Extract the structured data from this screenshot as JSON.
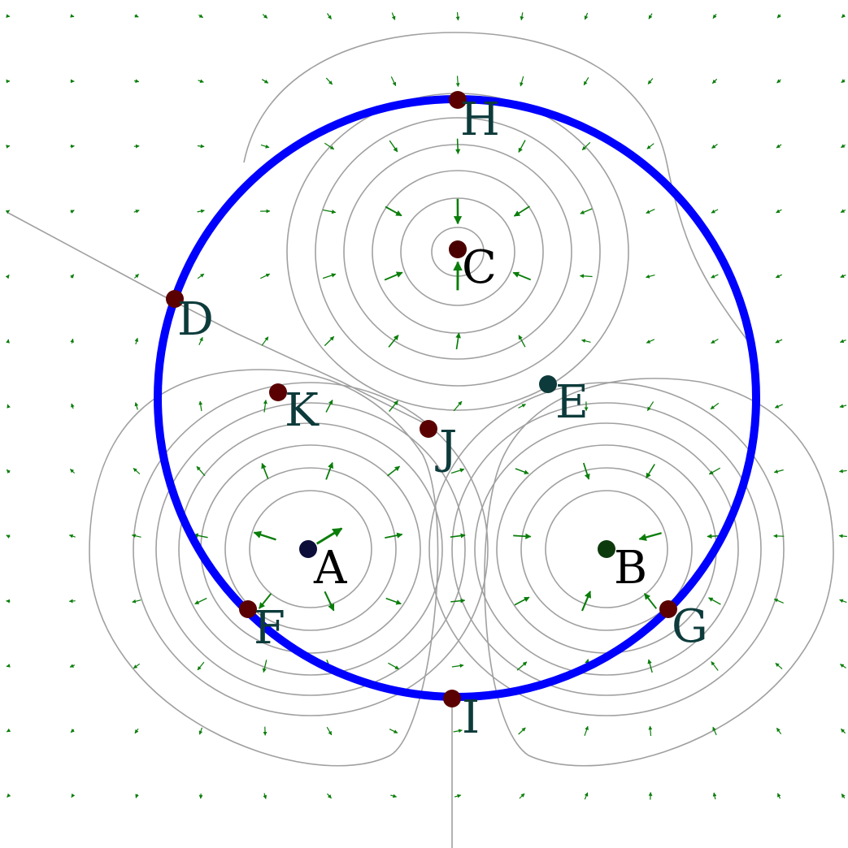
{
  "colors": {
    "background": "#ffffff",
    "circle": "#0000ff",
    "contour": "#a0a0a0",
    "arrow": "#0a7d0a",
    "label": "#0d3b3b"
  },
  "points": [
    {
      "id": "A",
      "label": "A",
      "color": "#0d0d3a"
    },
    {
      "id": "B",
      "label": "B",
      "color": "#0d3a0d"
    },
    {
      "id": "C",
      "label": "C",
      "color": "#4a0000"
    },
    {
      "id": "D",
      "label": "D",
      "color": "#5a0000"
    },
    {
      "id": "E",
      "label": "E",
      "color": "#0d3a3a"
    },
    {
      "id": "F",
      "label": "F",
      "color": "#5a0000"
    },
    {
      "id": "G",
      "label": "G",
      "color": "#5a0000"
    },
    {
      "id": "H",
      "label": "H",
      "color": "#5a0000"
    },
    {
      "id": "I",
      "label": "I",
      "color": "#5a0000"
    },
    {
      "id": "J",
      "label": "J",
      "color": "#5a0000"
    },
    {
      "id": "K",
      "label": "K",
      "color": "#5a0000"
    }
  ],
  "charges": [
    {
      "point": "A",
      "q": 1
    },
    {
      "point": "B",
      "q": -1
    },
    {
      "point": "C",
      "q": -1
    }
  ]
}
